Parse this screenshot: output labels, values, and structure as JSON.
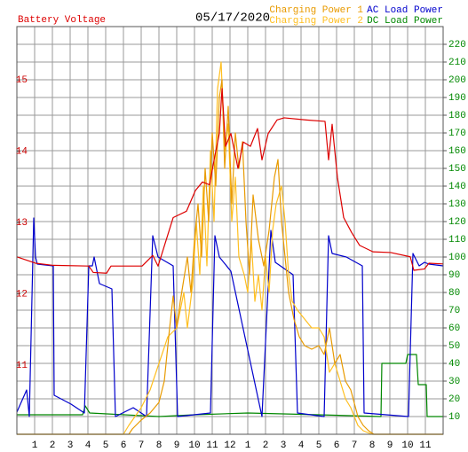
{
  "chart_data": {
    "type": "line",
    "title": "05/17/2020",
    "xlim": [
      0,
      24
    ],
    "xticks": [
      1,
      2,
      3,
      4,
      5,
      6,
      7,
      8,
      9,
      10,
      11,
      12,
      {
        "value": 13,
        "label": "1"
      },
      {
        "value": 14,
        "label": "2"
      },
      {
        "value": 15,
        "label": "3"
      },
      {
        "value": 16,
        "label": "4"
      },
      {
        "value": 17,
        "label": "5"
      },
      {
        "value": 18,
        "label": "6"
      },
      {
        "value": 19,
        "label": "7"
      },
      {
        "value": 20,
        "label": "8"
      },
      {
        "value": 21,
        "label": "9"
      },
      {
        "value": 22,
        "label": "10"
      },
      {
        "value": 23,
        "label": "11"
      }
    ],
    "ylim": [
      10.03,
      15.75
    ],
    "yticks": [
      11,
      12,
      13,
      14,
      15
    ],
    "y2lim": [
      0,
      230
    ],
    "y2ticks": [
      10,
      20,
      30,
      40,
      50,
      60,
      70,
      80,
      90,
      100,
      110,
      120,
      130,
      140,
      150,
      160,
      170,
      180,
      190,
      200,
      210,
      220
    ],
    "grid": true,
    "ytick_color": "#cc0000",
    "y2tick_color": "#008800",
    "series": [
      {
        "name": "Battery Voltage",
        "color": "#dd0000",
        "x": [
          0,
          1.05,
          2.05,
          4.05,
          4.3,
          5.05,
          5.3,
          7.05,
          7.65,
          7.95,
          8.8,
          9.55,
          10.05,
          10.45,
          10.85,
          11.15,
          11.4,
          11.55,
          11.75,
          12.05,
          12.45,
          12.75,
          13.15,
          13.55,
          13.8,
          14.15,
          14.65,
          15.05,
          16.3,
          17.35,
          17.55,
          17.75,
          18.05,
          18.4,
          18.85,
          19.3,
          20.05,
          21.05,
          22.15,
          22.35,
          22.95,
          23.2,
          24
        ],
        "values": [
          12.52,
          12.43,
          12.4,
          12.39,
          12.3,
          12.29,
          12.39,
          12.39,
          12.54,
          12.39,
          13.07,
          13.16,
          13.45,
          13.57,
          13.53,
          13.94,
          14.25,
          14.88,
          14.07,
          14.25,
          13.76,
          14.13,
          14.07,
          14.32,
          13.88,
          14.25,
          14.44,
          14.47,
          14.44,
          14.42,
          13.88,
          14.38,
          13.63,
          13.07,
          12.86,
          12.68,
          12.59,
          12.58,
          12.52,
          12.33,
          12.35,
          12.43,
          12.42
        ]
      },
      {
        "name": "Charging Power 1",
        "color": "#e89a00",
        "axis": "y2",
        "x": [
          0,
          6.3,
          6.5,
          7,
          7.5,
          8,
          8.3,
          8.6,
          8.8,
          9,
          9.2,
          9.6,
          9.8,
          10,
          10.2,
          10.4,
          10.6,
          10.8,
          11,
          11.2,
          11.4,
          11.55,
          11.7,
          11.9,
          12.1,
          12.3,
          12.5,
          12.7,
          12.9,
          13.1,
          13.3,
          13.6,
          13.9,
          14.2,
          14.5,
          14.7,
          14.9,
          15.1,
          15.3,
          15.6,
          15.9,
          16.2,
          16.6,
          17,
          17.3,
          17.6,
          17.9,
          18.2,
          18.5,
          18.8,
          19.2,
          19.5,
          19.8,
          20.1,
          24
        ],
        "values": [
          0,
          0,
          3,
          8,
          12,
          18,
          30,
          60,
          78,
          60,
          75,
          100,
          80,
          110,
          130,
          100,
          150,
          120,
          170,
          140,
          190,
          200,
          150,
          185,
          130,
          170,
          150,
          165,
          120,
          90,
          135,
          110,
          95,
          115,
          145,
          155,
          120,
          100,
          80,
          65,
          55,
          50,
          48,
          50,
          45,
          60,
          40,
          45,
          30,
          25,
          10,
          5,
          2,
          0,
          0
        ]
      },
      {
        "name": "Charging Power 2",
        "color": "#ffbf20",
        "axis": "y2",
        "x": [
          0,
          6,
          6.3,
          7,
          7.5,
          8,
          8.5,
          9,
          9.4,
          9.6,
          9.9,
          10.1,
          10.3,
          10.5,
          10.7,
          10.9,
          11.1,
          11.3,
          11.5,
          11.7,
          11.9,
          12.1,
          12.3,
          12.5,
          12.8,
          13,
          13.2,
          13.4,
          13.6,
          13.8,
          14,
          14.2,
          14.4,
          14.6,
          14.9,
          15.1,
          15.3,
          15.5,
          15.8,
          16.2,
          16.6,
          17,
          17.3,
          17.6,
          17.9,
          18.2,
          18.5,
          18.8,
          19.2,
          19.5,
          20,
          24
        ],
        "values": [
          0,
          0,
          5,
          15,
          25,
          40,
          55,
          60,
          80,
          60,
          85,
          120,
          90,
          140,
          95,
          160,
          120,
          195,
          210,
          160,
          175,
          120,
          145,
          100,
          90,
          80,
          110,
          75,
          90,
          70,
          100,
          80,
          115,
          130,
          140,
          120,
          90,
          75,
          70,
          65,
          60,
          60,
          55,
          35,
          40,
          30,
          20,
          15,
          5,
          2,
          0,
          0
        ]
      },
      {
        "name": "AC Load Power",
        "color": "#0000cc",
        "axis": "y2",
        "x": [
          0,
          0.55,
          0.7,
          0.95,
          1.05,
          1.15,
          2.05,
          2.1,
          3.05,
          3.8,
          4.05,
          4.25,
          4.35,
          4.65,
          5.35,
          5.55,
          6.55,
          7.3,
          7.65,
          7.95,
          8.8,
          9.05,
          10.9,
          11.15,
          11.4,
          12.05,
          13.8,
          14.3,
          14.55,
          15.55,
          15.8,
          17.3,
          17.55,
          17.75,
          18.55,
          19.45,
          19.55,
          22.05,
          22.3,
          22.65,
          22.95,
          23.2,
          24
        ],
        "values": [
          12.5,
          25,
          10,
          122,
          100,
          96,
          95,
          22,
          17,
          12,
          95,
          95,
          100,
          85,
          82,
          10,
          15,
          10,
          112,
          100,
          95,
          10,
          12,
          112,
          100,
          92,
          10,
          115,
          97,
          90,
          12,
          10,
          112,
          102,
          100,
          95,
          12,
          10,
          102,
          95,
          97,
          96,
          95
        ]
      },
      {
        "name": "DC Load Power",
        "color": "#008800",
        "axis": "y2",
        "x": [
          0,
          3.7,
          3.85,
          4.1,
          8,
          10,
          13,
          17,
          20.5,
          20.55,
          21.9,
          22,
          22.5,
          22.6,
          23.05,
          23.1,
          24
        ],
        "values": [
          11,
          11,
          16,
          12,
          10,
          11,
          12,
          11,
          10,
          40,
          40,
          45,
          45,
          28,
          28,
          10,
          10
        ]
      }
    ]
  }
}
